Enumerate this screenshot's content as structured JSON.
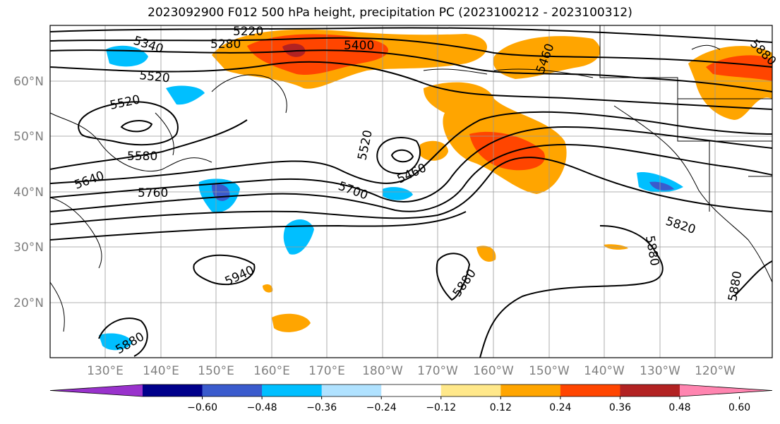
{
  "title": "2023092900 F012 500 hPa height, precipitation PC (2023100212 - 2023100312)",
  "lat_labels": [
    "60°N",
    "50°N",
    "40°N",
    "30°N",
    "20°N"
  ],
  "lon_labels": [
    "130°E",
    "140°E",
    "150°E",
    "160°E",
    "170°E",
    "180°W",
    "170°W",
    "160°W",
    "150°W",
    "140°W",
    "130°W",
    "120°W"
  ],
  "contour_labels": [
    "5220",
    "5280",
    "5340",
    "5400",
    "5460",
    "5520",
    "5520",
    "5520",
    "5580",
    "5640",
    "5700",
    "5760",
    "5820",
    "5880",
    "5880",
    "5880",
    "5880",
    "5940",
    "5460",
    "5880"
  ],
  "colorbar": {
    "ticks": [
      "−0.60",
      "−0.48",
      "−0.36",
      "−0.24",
      "−0.12",
      "0.12",
      "0.24",
      "0.36",
      "0.48",
      "0.60"
    ],
    "colors": [
      "#9932cc",
      "#00008b",
      "#3a5bcd",
      "#00bfff",
      "#b0e2ff",
      "#ffffff",
      "#ffe88a",
      "#ffa500",
      "#ff4500",
      "#b22222",
      "#ff85b0"
    ]
  }
}
